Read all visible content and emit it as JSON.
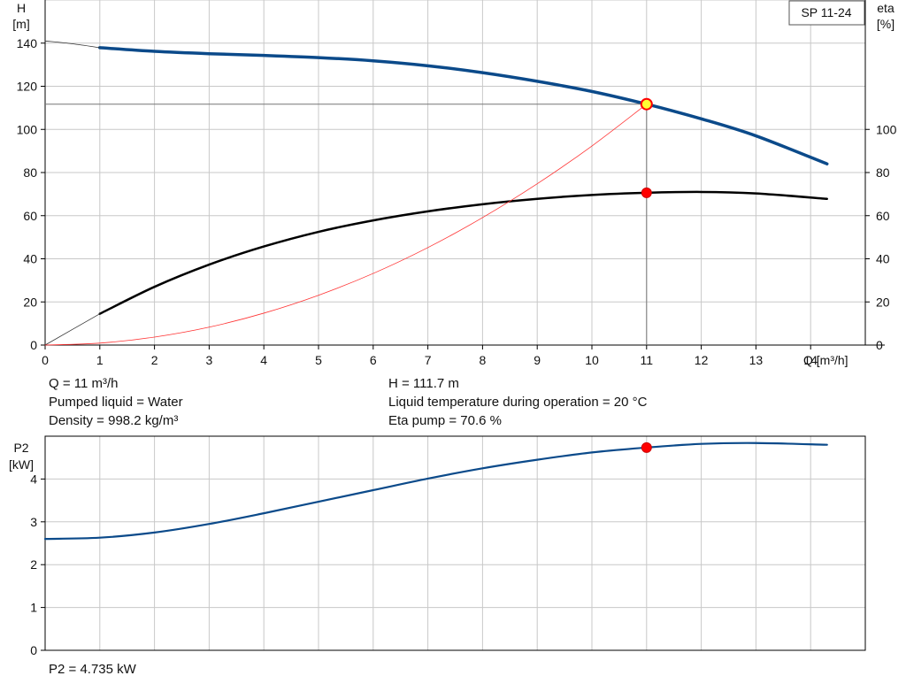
{
  "chart_data": [
    {
      "type": "line",
      "title": "SP 11-24",
      "xlabel": "Q [m³/h]",
      "ylabel_line1": "H",
      "ylabel_line2": "[m]",
      "y2label_line1": "eta",
      "y2label_line2": "[%]",
      "xlim": [
        0,
        15
      ],
      "ylim": [
        0,
        160
      ],
      "y2lim": [
        0,
        160
      ],
      "xticks": [
        0,
        1,
        2,
        3,
        4,
        5,
        6,
        7,
        8,
        9,
        10,
        11,
        12,
        13,
        14
      ],
      "yticks": [
        0,
        20,
        40,
        60,
        80,
        100,
        120,
        140
      ],
      "y2ticks": [
        0,
        20,
        40,
        60,
        80,
        100
      ],
      "grid": true,
      "series": [
        {
          "name": "H",
          "color": "#0b4a8a",
          "x": [
            1,
            2,
            3,
            4,
            5,
            6,
            7,
            8,
            9,
            10,
            11,
            12,
            13,
            14.3
          ],
          "y": [
            137.9,
            136.2,
            135.1,
            134.3,
            133.3,
            131.8,
            129.5,
            126.3,
            122.3,
            117.6,
            111.7,
            104.9,
            97.0,
            84.0
          ]
        },
        {
          "name": "H (extrapolated)",
          "color": "#333333",
          "x": [
            0,
            0.5,
            1
          ],
          "y": [
            141.0,
            139.7,
            137.9
          ]
        },
        {
          "name": "eta",
          "color": "#000000",
          "x": [
            1,
            2,
            3,
            4,
            5,
            6,
            7,
            8,
            9,
            10,
            11,
            12,
            13,
            14.3
          ],
          "y": [
            14.5,
            27.0,
            37.3,
            45.7,
            52.5,
            57.8,
            62.0,
            65.3,
            67.8,
            69.6,
            70.6,
            71.0,
            70.3,
            67.8
          ]
        },
        {
          "name": "eta (extrapolated)",
          "color": "#333333",
          "x": [
            0,
            1
          ],
          "y": [
            0,
            14.5
          ]
        },
        {
          "name": "system curve",
          "color": "#ff3333",
          "x": [
            0,
            1,
            2,
            3,
            4,
            5,
            6,
            7,
            8,
            9,
            10,
            11
          ],
          "y": [
            0,
            0.9,
            3.7,
            8.3,
            14.8,
            23.1,
            33.2,
            45.2,
            59.1,
            74.8,
            92.3,
            111.7
          ]
        }
      ],
      "duty_point": {
        "q": 11,
        "h": 111.7,
        "eta": 70.6,
        "h_marker_color": "#ffff33",
        "eta_marker_color": "#ff0000"
      }
    },
    {
      "type": "line",
      "ylabel_line1": "P2",
      "ylabel_line2": "[kW]",
      "xlim": [
        0,
        15
      ],
      "ylim": [
        0,
        5
      ],
      "yticks": [
        0,
        1,
        2,
        3,
        4
      ],
      "grid": true,
      "series": [
        {
          "name": "P2",
          "color": "#0b4a8a",
          "x": [
            0,
            1,
            2,
            3,
            4,
            5,
            6,
            7,
            8,
            9,
            10,
            11,
            12,
            13,
            14.3
          ],
          "y": [
            2.6,
            2.63,
            2.75,
            2.95,
            3.2,
            3.47,
            3.74,
            4.01,
            4.25,
            4.45,
            4.62,
            4.735,
            4.82,
            4.84,
            4.8
          ]
        }
      ],
      "duty_point": {
        "q": 11,
        "p2": 4.735,
        "marker_color": "#ff0000"
      }
    }
  ],
  "info": {
    "q": "Q = 11 m³/h",
    "liquid": "Pumped liquid = Water",
    "density": "Density = 998.2 kg/m³",
    "h": "H = 111.7 m",
    "temperature": "Liquid temperature during operation = 20 °C",
    "eta": "Eta pump = 70.6 %",
    "p2": "P2 = 4.735 kW"
  }
}
